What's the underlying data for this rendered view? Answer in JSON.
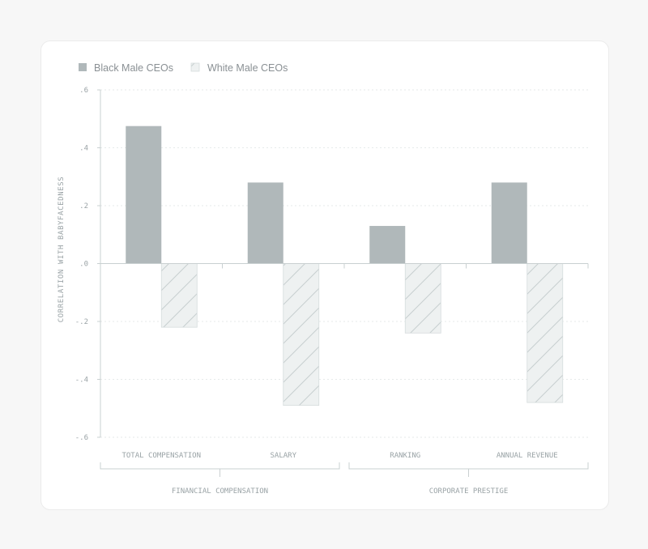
{
  "chart_data": {
    "type": "bar",
    "categories": [
      "TOTAL COMPENSATION",
      "SALARY",
      "RANKING",
      "ANNUAL REVENUE"
    ],
    "groups": [
      {
        "label": "FINANCIAL COMPENSATION",
        "categories": [
          "TOTAL COMPENSATION",
          "SALARY"
        ]
      },
      {
        "label": "CORPORATE PRESTIGE",
        "categories": [
          "RANKING",
          "ANNUAL REVENUE"
        ]
      }
    ],
    "series": [
      {
        "name": "Black Male CEOs",
        "values": [
          0.475,
          0.28,
          0.13,
          0.28
        ],
        "color": "#b0b8ba",
        "pattern": "solid"
      },
      {
        "name": "White Male CEOs",
        "values": [
          -0.22,
          -0.49,
          -0.24,
          -0.48
        ],
        "color": "#eef1f1",
        "pattern": "hatched"
      }
    ],
    "title": "",
    "xlabel": "",
    "ylabel": "CORRELATION WITH BABYFACEDNESS",
    "ylim": [
      -0.6,
      0.6
    ],
    "yticks": [
      0.6,
      0.4,
      0.2,
      0.0,
      -0.2,
      -0.4,
      -0.6
    ],
    "ytick_labels": [
      ".6",
      ".4",
      ".2",
      ".0",
      "-.2",
      "-.4",
      "-.6"
    ],
    "grid": true,
    "legend": "top-left"
  }
}
